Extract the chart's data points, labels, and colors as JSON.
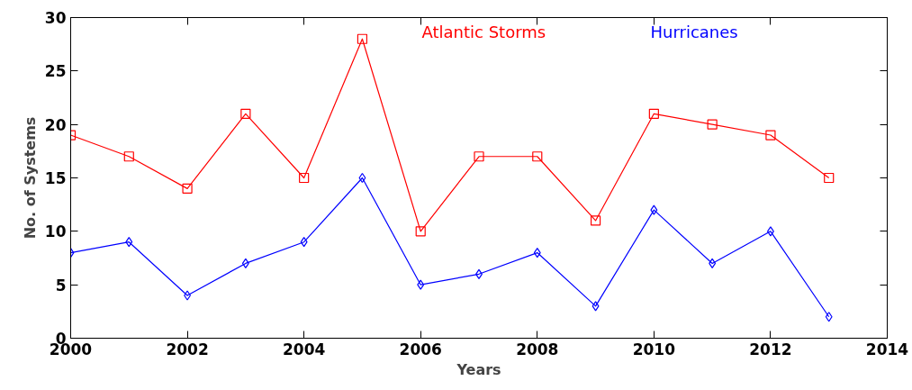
{
  "chart_data": {
    "type": "line",
    "xlabel": "Years",
    "ylabel": "No. of Systems",
    "x": [
      2000,
      2001,
      2002,
      2003,
      2004,
      2005,
      2006,
      2007,
      2008,
      2009,
      2010,
      2011,
      2012,
      2013
    ],
    "series": [
      {
        "name": "Atlantic Storms",
        "color": "#ff0000",
        "marker": "square",
        "values": [
          19,
          17,
          14,
          21,
          15,
          28,
          10,
          17,
          17,
          11,
          21,
          20,
          19,
          15
        ]
      },
      {
        "name": "Hurricanes",
        "color": "#0000ff",
        "marker": "diamond",
        "values": [
          8,
          9,
          4,
          7,
          9,
          15,
          5,
          6,
          8,
          3,
          12,
          7,
          10,
          2
        ]
      }
    ],
    "xlim": [
      2000,
      2014
    ],
    "xticks": [
      2000,
      2002,
      2004,
      2006,
      2008,
      2010,
      2012,
      2014
    ],
    "ylim": [
      0,
      30
    ],
    "yticks": [
      0,
      5,
      10,
      15,
      20,
      25,
      30
    ],
    "grid": false,
    "legend": "top",
    "line_style": "solid"
  }
}
